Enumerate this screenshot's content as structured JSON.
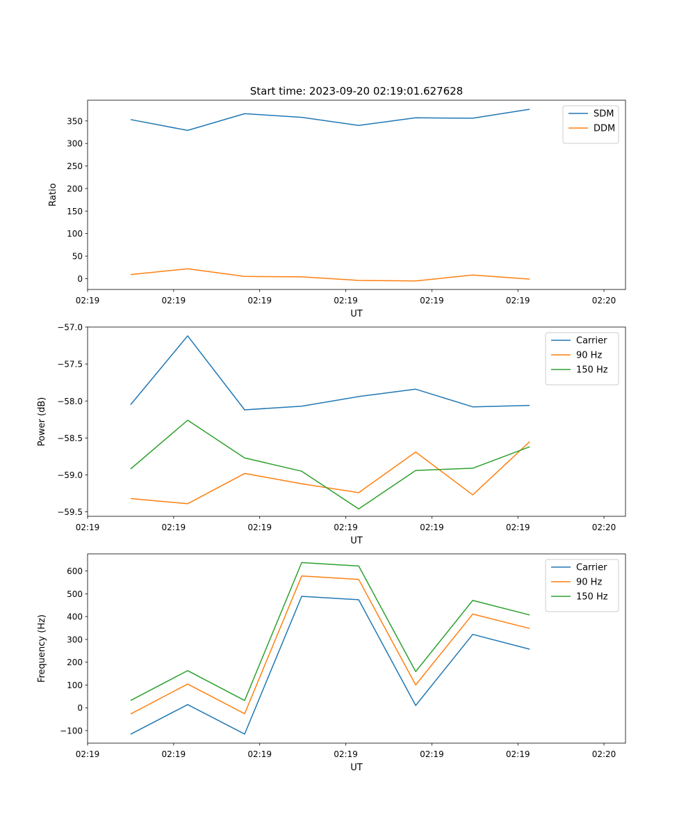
{
  "chart_data": [
    {
      "type": "line",
      "title": "Start time: 2023-09-20 02:19:01.627628",
      "xlabel": "UT",
      "ylabel": "Ratio",
      "xlim": [
        0,
        1
      ],
      "ylim": [
        -24,
        396
      ],
      "x": [
        0.08,
        0.186,
        0.292,
        0.398,
        0.504,
        0.61,
        0.716,
        0.822
      ],
      "xticks": [
        0,
        0.16,
        0.32,
        0.48,
        0.64,
        0.8,
        0.96
      ],
      "xtick_labels": [
        "02:19",
        "02:19",
        "02:19",
        "02:19",
        "02:19",
        "02:19",
        "02:20"
      ],
      "yticks": [
        0,
        50,
        100,
        150,
        200,
        250,
        300,
        350
      ],
      "ytick_labels": [
        "0",
        "50",
        "100",
        "150",
        "200",
        "250",
        "300",
        "350"
      ],
      "legend": "top-right",
      "series": [
        {
          "name": "SDM",
          "color": "#1f77b4",
          "values": [
            353,
            329,
            366,
            358,
            340,
            357,
            356,
            376
          ]
        },
        {
          "name": "DDM",
          "color": "#ff7f0e",
          "values": [
            9,
            22,
            5,
            4,
            -4,
            -5,
            8,
            -1
          ]
        }
      ]
    },
    {
      "type": "line",
      "title": "",
      "xlabel": "UT",
      "ylabel": "Power (dB)",
      "xlim": [
        0,
        1
      ],
      "ylim": [
        -59.56,
        -57.0
      ],
      "x": [
        0.08,
        0.186,
        0.292,
        0.398,
        0.504,
        0.61,
        0.716,
        0.822
      ],
      "xticks": [
        0,
        0.16,
        0.32,
        0.48,
        0.64,
        0.8,
        0.96
      ],
      "xtick_labels": [
        "02:19",
        "02:19",
        "02:19",
        "02:19",
        "02:19",
        "02:19",
        "02:20"
      ],
      "yticks": [
        -57.0,
        -57.5,
        -58.0,
        -58.5,
        -59.0,
        -59.5
      ],
      "ytick_labels": [
        "−57.0",
        "−57.5",
        "−58.0",
        "−58.5",
        "−59.0",
        "−59.5"
      ],
      "legend": "top-right",
      "series": [
        {
          "name": "Carrier",
          "color": "#1f77b4",
          "values": [
            -58.05,
            -57.12,
            -58.12,
            -58.07,
            -57.94,
            -57.84,
            -58.08,
            -58.06
          ]
        },
        {
          "name": "90 Hz",
          "color": "#ff7f0e",
          "values": [
            -59.32,
            -59.39,
            -58.98,
            -59.12,
            -59.24,
            -58.69,
            -59.27,
            -58.55
          ]
        },
        {
          "name": "150 Hz",
          "color": "#2ca02c",
          "values": [
            -58.92,
            -58.26,
            -58.77,
            -58.95,
            -59.46,
            -58.94,
            -58.91,
            -58.62
          ]
        }
      ]
    },
    {
      "type": "line",
      "title": "",
      "xlabel": "UT",
      "ylabel": "Frequency (Hz)",
      "xlim": [
        0,
        1
      ],
      "ylim": [
        -155,
        675
      ],
      "x": [
        0.08,
        0.186,
        0.292,
        0.398,
        0.504,
        0.61,
        0.716,
        0.822
      ],
      "xticks": [
        0,
        0.16,
        0.32,
        0.48,
        0.64,
        0.8,
        0.96
      ],
      "xtick_labels": [
        "02:19",
        "02:19",
        "02:19",
        "02:19",
        "02:19",
        "02:19",
        "02:20"
      ],
      "yticks": [
        -100,
        0,
        100,
        200,
        300,
        400,
        500,
        600
      ],
      "ytick_labels": [
        "−100",
        "0",
        "100",
        "200",
        "300",
        "400",
        "500",
        "600"
      ],
      "legend": "top-right",
      "series": [
        {
          "name": "Carrier",
          "color": "#1f77b4",
          "values": [
            -116,
            14,
            -115,
            489,
            474,
            10,
            322,
            257
          ]
        },
        {
          "name": "90 Hz",
          "color": "#ff7f0e",
          "values": [
            -27,
            104,
            -26,
            578,
            563,
            100,
            411,
            348
          ]
        },
        {
          "name": "150 Hz",
          "color": "#2ca02c",
          "values": [
            32,
            163,
            32,
            637,
            622,
            159,
            471,
            407
          ]
        }
      ]
    }
  ]
}
